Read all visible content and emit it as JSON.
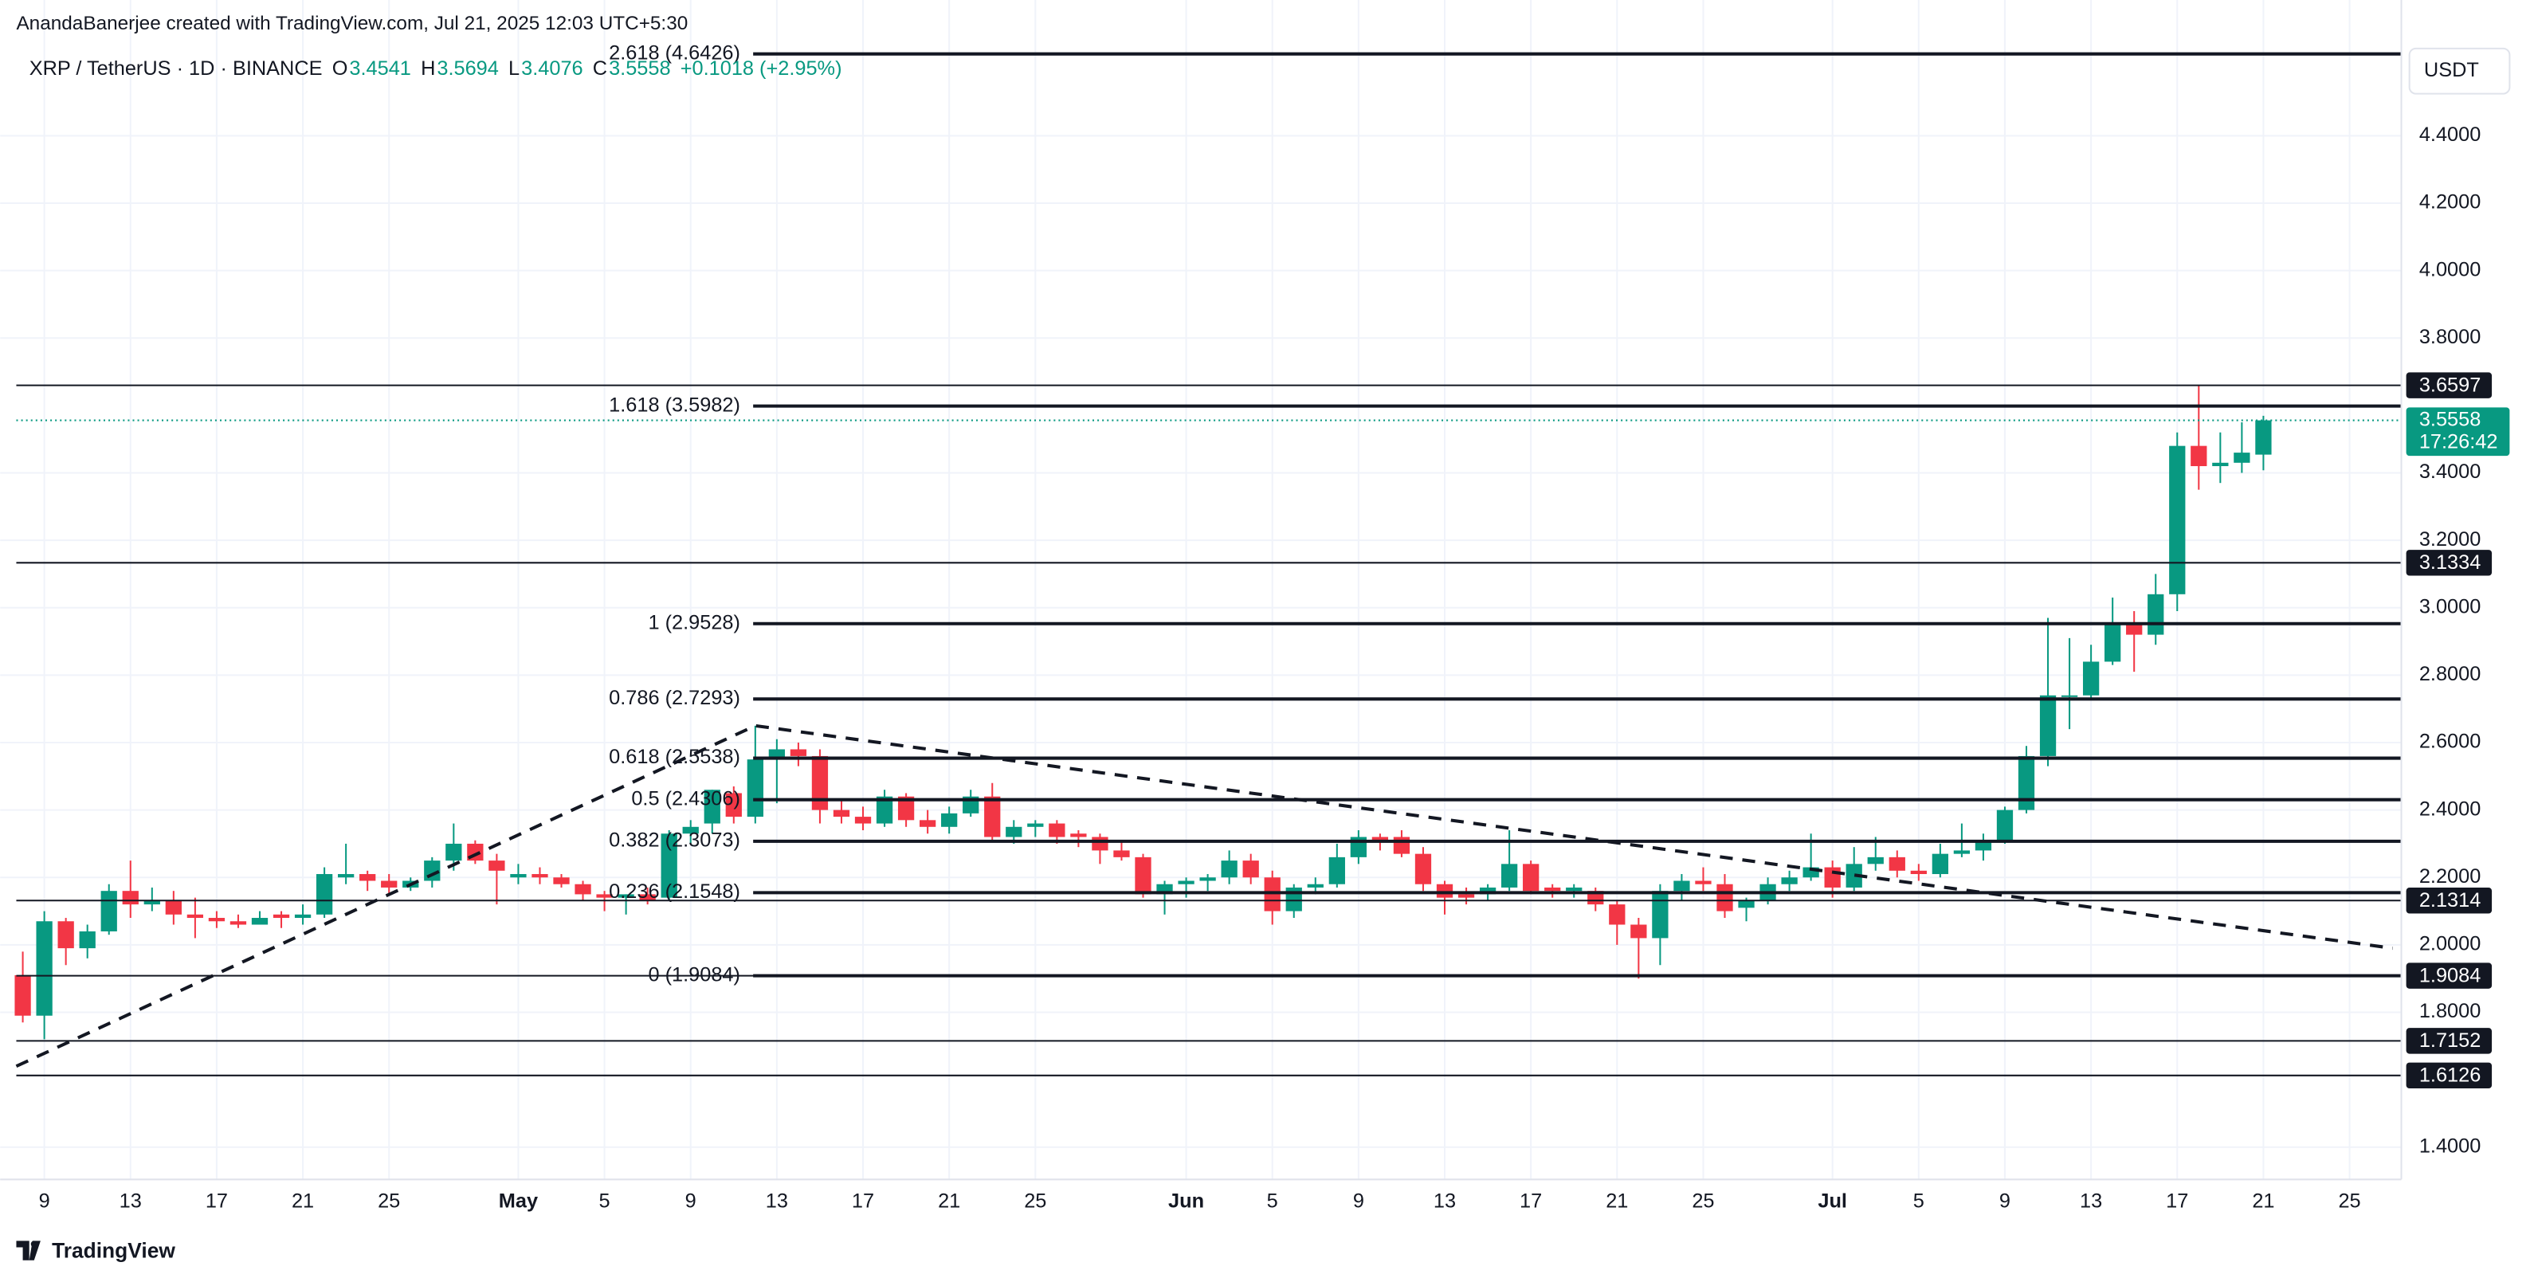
{
  "header": {
    "credit": "AnandaBanerjee created with TradingView.com, Jul 21, 2025 12:03 UTC+5:30",
    "symbol": "XRP / TetherUS · 1D · BINANCE",
    "o_label": "O",
    "o": 3.4541,
    "h_label": "H",
    "h": 3.5694,
    "l_label": "L",
    "l": 3.4076,
    "c_label": "C",
    "c": 3.5558,
    "change": "+0.1018 (+2.95%)",
    "currency": "USDT",
    "brand": "TradingView"
  },
  "chart_data": {
    "type": "candlestick",
    "up_color": "#089981",
    "down_color": "#f23645",
    "categories": [
      null,
      "9",
      null,
      null,
      null,
      "13",
      null,
      null,
      null,
      "17",
      null,
      null,
      null,
      "21",
      null,
      null,
      null,
      "25",
      null,
      null,
      null,
      null,
      null,
      "May",
      null,
      null,
      null,
      "5",
      null,
      null,
      null,
      "9",
      null,
      null,
      null,
      "13",
      null,
      null,
      null,
      "17",
      null,
      null,
      null,
      "21",
      null,
      null,
      null,
      "25",
      null,
      null,
      null,
      null,
      null,
      null,
      "Jun",
      null,
      null,
      null,
      "5",
      null,
      null,
      null,
      "9",
      null,
      null,
      null,
      "13",
      null,
      null,
      null,
      "17",
      null,
      null,
      null,
      "21",
      null,
      null,
      null,
      "25",
      null,
      null,
      null,
      null,
      null,
      "Jul",
      null,
      null,
      null,
      "5",
      null,
      null,
      null,
      "9",
      null,
      null,
      null,
      "13",
      null,
      null,
      null,
      "17",
      null,
      null,
      null,
      "21",
      null,
      null,
      null,
      "25"
    ],
    "open": [
      1.91,
      1.79,
      2.07,
      1.99,
      2.04,
      2.16,
      2.12,
      2.13,
      2.09,
      2.08,
      2.07,
      2.06,
      2.09,
      2.08,
      2.09,
      2.2,
      2.21,
      2.19,
      2.17,
      2.19,
      2.25,
      2.3,
      2.25,
      2.2,
      2.21,
      2.2,
      2.18,
      2.15,
      2.14,
      2.15,
      2.14,
      2.33,
      2.36,
      2.45,
      2.38,
      2.55,
      2.58,
      2.56,
      2.4,
      2.38,
      2.36,
      2.44,
      2.37,
      2.35,
      2.39,
      2.44,
      2.32,
      2.35,
      2.36,
      2.33,
      2.32,
      2.28,
      2.26,
      2.15,
      2.18,
      2.19,
      2.2,
      2.25,
      2.2,
      2.1,
      2.17,
      2.18,
      2.26,
      2.32,
      2.32,
      2.27,
      2.18,
      2.15,
      2.15,
      2.17,
      2.24,
      2.17,
      2.16,
      2.16,
      2.12,
      2.06,
      2.02,
      2.16,
      2.19,
      2.18,
      2.11,
      2.13,
      2.18,
      2.2,
      2.23,
      2.17,
      2.24,
      2.26,
      2.22,
      2.21,
      2.27,
      2.28,
      2.31,
      2.4,
      2.56,
      2.74,
      2.74,
      2.84,
      2.95,
      2.92,
      3.04,
      3.48,
      3.42,
      3.43,
      3.4541,
      null,
      null,
      null,
      null
    ],
    "high": [
      1.98,
      2.1,
      2.08,
      2.06,
      2.18,
      2.25,
      2.17,
      2.16,
      2.14,
      2.1,
      2.09,
      2.1,
      2.1,
      2.12,
      2.23,
      2.3,
      2.22,
      2.21,
      2.2,
      2.26,
      2.36,
      2.31,
      2.27,
      2.24,
      2.23,
      2.21,
      2.19,
      2.16,
      2.15,
      2.17,
      2.34,
      2.37,
      2.46,
      2.47,
      2.65,
      2.61,
      2.6,
      2.58,
      2.43,
      2.41,
      2.46,
      2.45,
      2.4,
      2.41,
      2.46,
      2.48,
      2.37,
      2.37,
      2.37,
      2.34,
      2.33,
      2.31,
      2.27,
      2.19,
      2.2,
      2.21,
      2.28,
      2.27,
      2.22,
      2.18,
      2.2,
      2.3,
      2.34,
      2.33,
      2.34,
      2.29,
      2.19,
      2.17,
      2.18,
      2.34,
      2.25,
      2.18,
      2.18,
      2.17,
      2.13,
      2.08,
      2.18,
      2.21,
      2.23,
      2.21,
      2.14,
      2.2,
      2.22,
      2.33,
      2.25,
      2.29,
      2.32,
      2.28,
      2.24,
      2.3,
      2.36,
      2.33,
      2.41,
      2.59,
      2.97,
      2.91,
      2.89,
      3.03,
      2.99,
      3.1,
      3.52,
      3.66,
      3.52,
      3.55,
      3.5694,
      null,
      null,
      null,
      null
    ],
    "low": [
      1.77,
      1.72,
      1.94,
      1.96,
      2.03,
      2.08,
      2.1,
      2.06,
      2.02,
      2.05,
      2.05,
      2.06,
      2.05,
      2.06,
      2.08,
      2.18,
      2.16,
      2.15,
      2.16,
      2.17,
      2.22,
      2.24,
      2.12,
      2.18,
      2.18,
      2.17,
      2.13,
      2.1,
      2.09,
      2.12,
      2.13,
      2.3,
      2.33,
      2.36,
      2.36,
      2.42,
      2.53,
      2.36,
      2.36,
      2.34,
      2.35,
      2.35,
      2.33,
      2.33,
      2.38,
      2.31,
      2.3,
      2.32,
      2.3,
      2.29,
      2.24,
      2.25,
      2.14,
      2.09,
      2.14,
      2.16,
      2.18,
      2.18,
      2.06,
      2.08,
      2.15,
      2.17,
      2.24,
      2.28,
      2.26,
      2.16,
      2.09,
      2.12,
      2.13,
      2.16,
      2.15,
      2.14,
      2.14,
      2.1,
      2.0,
      1.9,
      1.94,
      2.13,
      2.16,
      2.08,
      2.07,
      2.12,
      2.16,
      2.19,
      2.14,
      2.16,
      2.22,
      2.2,
      2.19,
      2.2,
      2.26,
      2.25,
      2.3,
      2.39,
      2.53,
      2.64,
      2.73,
      2.83,
      2.81,
      2.89,
      2.99,
      3.35,
      3.37,
      3.4,
      3.4076,
      null,
      null,
      null,
      null
    ],
    "close": [
      1.79,
      2.07,
      1.99,
      2.04,
      2.16,
      2.12,
      2.13,
      2.09,
      2.08,
      2.07,
      2.06,
      2.08,
      2.08,
      2.09,
      2.21,
      2.21,
      2.19,
      2.17,
      2.19,
      2.25,
      2.3,
      2.25,
      2.22,
      2.21,
      2.2,
      2.18,
      2.15,
      2.14,
      2.15,
      2.13,
      2.33,
      2.35,
      2.46,
      2.38,
      2.55,
      2.58,
      2.56,
      2.4,
      2.38,
      2.36,
      2.44,
      2.37,
      2.35,
      2.39,
      2.44,
      2.32,
      2.35,
      2.36,
      2.32,
      2.32,
      2.28,
      2.26,
      2.15,
      2.18,
      2.19,
      2.2,
      2.25,
      2.2,
      2.1,
      2.17,
      2.18,
      2.26,
      2.32,
      2.31,
      2.27,
      2.18,
      2.14,
      2.14,
      2.17,
      2.24,
      2.16,
      2.16,
      2.17,
      2.12,
      2.06,
      2.02,
      2.16,
      2.19,
      2.18,
      2.1,
      2.13,
      2.18,
      2.2,
      2.23,
      2.17,
      2.24,
      2.26,
      2.22,
      2.21,
      2.27,
      2.28,
      2.31,
      2.4,
      2.56,
      2.74,
      2.74,
      2.84,
      2.95,
      2.92,
      3.04,
      3.48,
      3.42,
      3.43,
      3.46,
      3.5558,
      null,
      null,
      null,
      null
    ],
    "ylim": [
      1.3042,
      4.8026
    ],
    "yticks": [
      {
        "value": 1.4,
        "label": "1.4000"
      },
      {
        "value": 1.8,
        "label": "1.8000"
      },
      {
        "value": 2.0,
        "label": "2.0000"
      },
      {
        "value": 2.2,
        "label": "2.2000"
      },
      {
        "value": 2.4,
        "label": "2.4000"
      },
      {
        "value": 2.6,
        "label": "2.6000"
      },
      {
        "value": 2.8,
        "label": "2.8000"
      },
      {
        "value": 3.0,
        "label": "3.0000"
      },
      {
        "value": 3.2,
        "label": "3.2000"
      },
      {
        "value": 3.4,
        "label": "3.4000"
      },
      {
        "value": 3.8,
        "label": "3.8000"
      },
      {
        "value": 4.0,
        "label": "4.0000"
      },
      {
        "value": 4.2,
        "label": "4.2000"
      },
      {
        "value": 4.4,
        "label": "4.4000"
      }
    ],
    "grid": true,
    "fib_levels": [
      {
        "label": "2.618 (4.6426)",
        "value": 4.6426
      },
      {
        "label": "1.618 (3.5982)",
        "value": 3.5982
      },
      {
        "label": "1 (2.9528)",
        "value": 2.9528
      },
      {
        "label": "0.786 (2.7293)",
        "value": 2.7293
      },
      {
        "label": "0.618 (2.5538)",
        "value": 2.5538
      },
      {
        "label": "0.5 (2.4306)",
        "value": 2.4306
      },
      {
        "label": "0.382 (2.3073)",
        "value": 2.3073
      },
      {
        "label": "0.236 (2.1548)",
        "value": 2.1548
      },
      {
        "label": "0 (1.9084)",
        "value": 1.9084
      }
    ],
    "levels": [
      3.6597,
      3.1334,
      2.1314,
      1.9084,
      1.7152,
      1.6126
    ],
    "current_price": 3.5558,
    "countdown": "17:26:42",
    "trend_line": {
      "x": [
        -0.3,
        34,
        110
      ],
      "values": [
        1.64,
        2.65,
        1.99
      ]
    }
  }
}
